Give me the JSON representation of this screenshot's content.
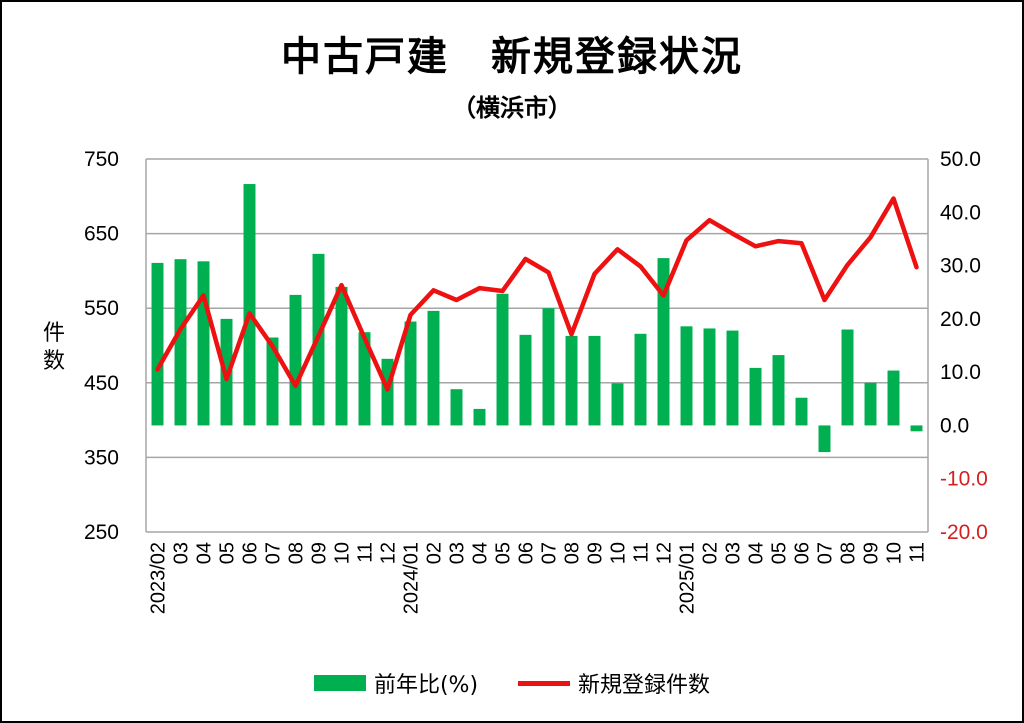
{
  "title": "中古戸建　新規登録状況",
  "subtitle": "（横浜市）",
  "legend": {
    "bar_label": "前年比(%)",
    "line_label": "新規登録件数"
  },
  "colors": {
    "bar": "#00b050",
    "line": "#ee1111",
    "right_axis_negative": "#d42020",
    "grid": "#a6a6a6"
  },
  "chart_data": {
    "type": "bar+line",
    "title": "中古戸建　新規登録状況",
    "subtitle": "（横浜市）",
    "categories": [
      "2023/02",
      "03",
      "04",
      "05",
      "06",
      "07",
      "08",
      "09",
      "10",
      "11",
      "12",
      "2024/01",
      "02",
      "03",
      "04",
      "05",
      "06",
      "07",
      "08",
      "09",
      "10",
      "11",
      "12",
      "2025/01",
      "02",
      "03",
      "04",
      "05",
      "06",
      "07",
      "08",
      "09",
      "10",
      "11"
    ],
    "left_axis": {
      "label": "件数",
      "min": 250,
      "max": 750,
      "step": 100,
      "ticks": [
        "250",
        "350",
        "450",
        "550",
        "650",
        "750"
      ]
    },
    "right_axis": {
      "min": -20,
      "max": 50,
      "step": 10,
      "ticks": [
        "-20.0",
        "-10.0",
        "0.0",
        "10.0",
        "20.0",
        "30.0",
        "40.0",
        "50.0"
      ]
    },
    "grid": true,
    "legend_position": "bottom",
    "series": [
      {
        "name": "前年比(%)",
        "type": "bar",
        "axis": "right",
        "values": [
          30.5,
          31.2,
          30.8,
          20.0,
          45.3,
          16.5,
          24.5,
          32.2,
          26.0,
          17.5,
          12.5,
          19.5,
          21.5,
          6.8,
          3.1,
          24.7,
          17.0,
          22.0,
          16.8,
          16.8,
          7.9,
          17.2,
          31.4,
          18.6,
          18.2,
          17.8,
          10.8,
          13.2,
          5.2,
          -5.0,
          18.0,
          8.0,
          10.3,
          -1.1
        ]
      },
      {
        "name": "新規登録件数",
        "type": "line",
        "axis": "left",
        "values": [
          468,
          522,
          567,
          455,
          543,
          499,
          446,
          513,
          581,
          510,
          441,
          541,
          574,
          561,
          577,
          573,
          616,
          598,
          515,
          596,
          629,
          606,
          567,
          641,
          668,
          650,
          633,
          640,
          637,
          561,
          608,
          645,
          697,
          605
        ]
      }
    ]
  }
}
